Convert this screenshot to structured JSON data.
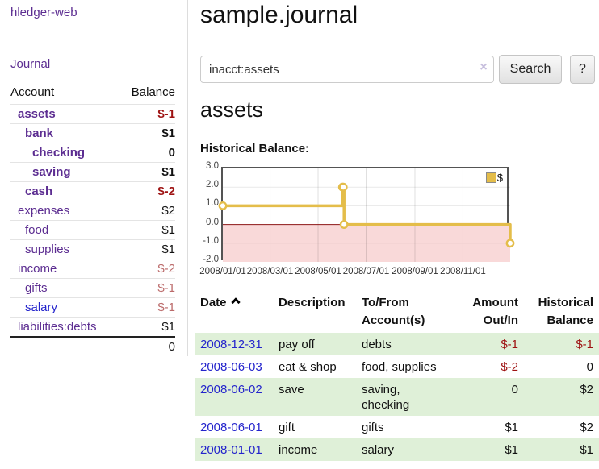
{
  "colors": {
    "purple": "#5c2d91",
    "blue": "#2424cc",
    "red_strong": "#9e1212",
    "red_light": "#bb6a6a",
    "green_row": "#dff0d8",
    "gold": "#e4bd4a",
    "pink": "#f9d9d9",
    "zero_line": "#8b1515",
    "chart_border": "#545454"
  },
  "sidebar": {
    "app_title": "hledger-web",
    "journal_label": "Journal",
    "table": {
      "account_header": "Account",
      "balance_header": "Balance",
      "accounts": [
        {
          "name": "assets",
          "balance": "$-1"
        },
        {
          "name": "bank",
          "balance": "$1"
        },
        {
          "name": "checking",
          "balance": "0"
        },
        {
          "name": "saving",
          "balance": "$1"
        },
        {
          "name": "cash",
          "balance": "$-2"
        },
        {
          "name": "expenses",
          "balance": "$2"
        },
        {
          "name": "food",
          "balance": "$1"
        },
        {
          "name": "supplies",
          "balance": "$1"
        },
        {
          "name": "income",
          "balance": "$-2"
        },
        {
          "name": "gifts",
          "balance": "$-1"
        },
        {
          "name": "salary",
          "balance": "$-1"
        },
        {
          "name": "liabilities:debts",
          "balance": "$1"
        }
      ],
      "total": "0"
    }
  },
  "header": {
    "title": "sample.journal"
  },
  "search": {
    "value": "inacct:assets",
    "clear_icon": "×",
    "button_label": "Search",
    "help_label": "?"
  },
  "account_page": {
    "heading": "assets",
    "chart_label": "Historical Balance:"
  },
  "chart_data": {
    "type": "line",
    "subtype": "step-after",
    "title": "Historical Balance:",
    "series": [
      {
        "name": "$",
        "points": [
          [
            "2008-01-01",
            1
          ],
          [
            "2008-06-01",
            2
          ],
          [
            "2008-06-02",
            2
          ],
          [
            "2008-06-03",
            0
          ],
          [
            "2008-12-31",
            -1
          ]
        ]
      }
    ],
    "x_domain": [
      "2008-01-01",
      "2008-12-31"
    ],
    "x_tick_labels": [
      "2008/01/01",
      "2008/03/01",
      "2008/05/01",
      "2008/07/01",
      "2008/09/01",
      "2008/11/01"
    ],
    "y_ticks": [
      3.0,
      2.0,
      1.0,
      0.0,
      -1.0,
      -2.0
    ],
    "ylim": [
      -2,
      3
    ],
    "grid": true,
    "legend": {
      "label": "$",
      "position": "top-right"
    }
  },
  "register": {
    "headers": {
      "date": "Date",
      "description": "Description",
      "account": "To/From Account(s)",
      "amount": "Amount Out/In",
      "balance": "Historical Balance"
    },
    "rows": [
      {
        "date": "2008-12-31",
        "description": "pay off",
        "account": "debts",
        "amount": "$-1",
        "balance": "$-1"
      },
      {
        "date": "2008-06-03",
        "description": "eat & shop",
        "account": "food, supplies",
        "amount": "$-2",
        "balance": "0"
      },
      {
        "date": "2008-06-02",
        "description": "save",
        "account": "saving, checking",
        "amount": "0",
        "balance": "$2"
      },
      {
        "date": "2008-06-01",
        "description": "gift",
        "account": "gifts",
        "amount": "$1",
        "balance": "$2"
      },
      {
        "date": "2008-01-01",
        "description": "income",
        "account": "salary",
        "amount": "$1",
        "balance": "$1"
      }
    ]
  }
}
